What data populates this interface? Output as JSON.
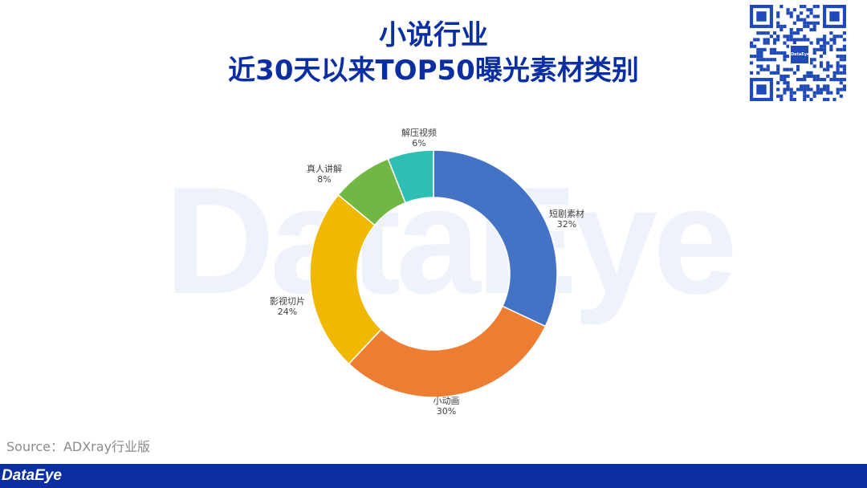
{
  "header": {
    "title_line1": "小说行业",
    "title_line2": "近30天以来TOP50曝光素材类别"
  },
  "watermark": {
    "text": "DataEye"
  },
  "qr": {
    "logo_text": "DataEye"
  },
  "source": {
    "text": "Source：ADXray行业版"
  },
  "footer": {
    "logo_text": "DataEye"
  },
  "chart_data": {
    "type": "pie",
    "donut": true,
    "title": "",
    "categories": [
      "短剧素材",
      "小动画",
      "影视切片",
      "真人讲解",
      "解压视频"
    ],
    "values": [
      32,
      30,
      24,
      8,
      6
    ],
    "labels": [
      "32%",
      "30%",
      "24%",
      "8%",
      "6%"
    ],
    "colors": [
      "#4472c4",
      "#ed7d31",
      "#f0b800",
      "#70b743",
      "#2fbfb2"
    ],
    "legend": "none"
  }
}
